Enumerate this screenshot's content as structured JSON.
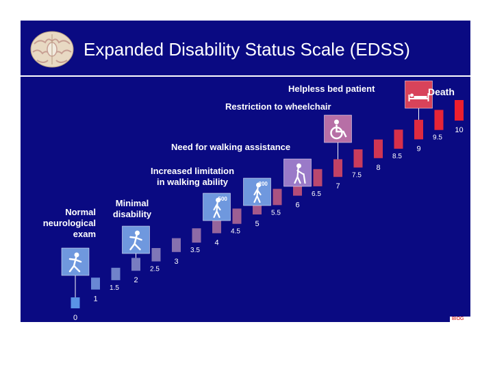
{
  "title": "Expanded Disability Status Scale (EDSS)",
  "logo_text": "BIOG",
  "labels": {
    "normal": [
      "Normal",
      "neurological",
      "exam"
    ],
    "minimal": [
      "Minimal",
      "disability"
    ],
    "increased": [
      "Increased limitation",
      "in walking ability"
    ],
    "walking_assist": "Need for walking assistance",
    "wheelchair": "Restriction to wheelchair",
    "bed": "Helpless bed patient",
    "death": "Death"
  },
  "icons": [
    {
      "name": "running-icon",
      "at": "0"
    },
    {
      "name": "running-icon",
      "at": "2"
    },
    {
      "name": "walking-icon",
      "at": "4",
      "badge": "500"
    },
    {
      "name": "walking-icon",
      "at": "5",
      "badge": "200"
    },
    {
      "name": "cane-walker-icon",
      "at": "6"
    },
    {
      "name": "wheelchair-icon",
      "at": "7"
    },
    {
      "name": "bed-icon",
      "at": "9"
    }
  ],
  "chart_data": {
    "type": "bar",
    "title": "Expanded Disability Status Scale (EDSS)",
    "categories": [
      "0",
      "1",
      "1.5",
      "2",
      "2.5",
      "3",
      "3.5",
      "4",
      "4.5",
      "5",
      "5.5",
      "6",
      "6.5",
      "7",
      "7.5",
      "8",
      "8.5",
      "9",
      "9.5",
      "10"
    ],
    "values": [
      0,
      1,
      1.5,
      2,
      2.5,
      3,
      3.5,
      4,
      4.5,
      5,
      5.5,
      6,
      6.5,
      7,
      7.5,
      8,
      8.5,
      9,
      9.5,
      10
    ],
    "xlabel": "",
    "ylabel": "",
    "ylim": [
      0,
      10
    ],
    "color_low": "#5a93e6",
    "color_high": "#ee1f2e"
  }
}
